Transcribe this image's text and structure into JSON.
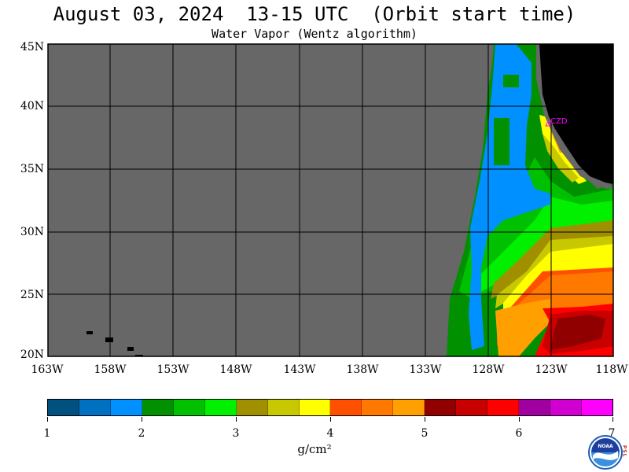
{
  "title": "August 03, 2024  13-15 UTC  (Orbit start time)",
  "subtitle": "Water Vapor (Wentz algorithm)",
  "station_label": "CZD",
  "map": {
    "lat_labels": [
      "45N",
      "40N",
      "35N",
      "30N",
      "25N",
      "20N"
    ],
    "lon_labels": [
      "163W",
      "158W",
      "153W",
      "148W",
      "143W",
      "138W",
      "133W",
      "128W",
      "123W",
      "118W"
    ],
    "lat_range": [
      20,
      45
    ],
    "lon_range": [
      -163,
      -118
    ],
    "no_data_color": "#676767",
    "land_color": "#000000",
    "gridline_color": "#000000"
  },
  "colorbar": {
    "units": "g/cm²",
    "tick_labels": [
      "1",
      "2",
      "3",
      "4",
      "5",
      "6",
      "7"
    ],
    "range": [
      1,
      7
    ],
    "colors": [
      "#005080",
      "#0070c0",
      "#0090ff",
      "#009000",
      "#00c000",
      "#00f000",
      "#a09000",
      "#c8c800",
      "#ffff00",
      "#ff5000",
      "#ff7800",
      "#ffa000",
      "#900000",
      "#c80000",
      "#ff0000",
      "#a000a0",
      "#d000d0",
      "#ff00ff"
    ]
  },
  "logo": {
    "text": "NOAA",
    "side_letters": "PSL"
  }
}
